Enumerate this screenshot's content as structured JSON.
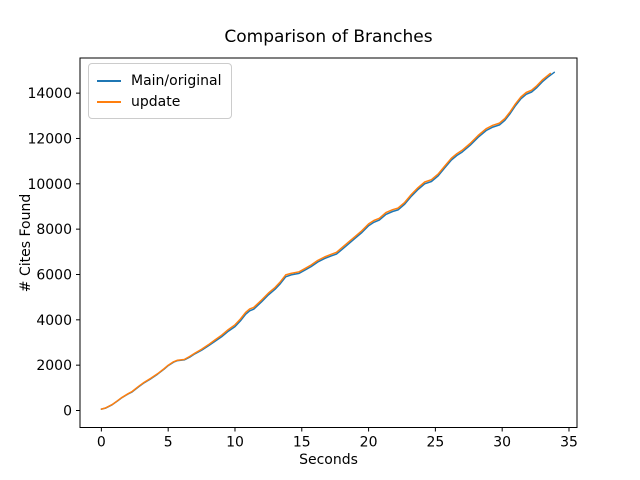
{
  "chart_data": {
    "type": "line",
    "title": "Comparison of Branches",
    "xlabel": "Seconds",
    "ylabel": "# Cites Found",
    "xlim": [
      -1.6,
      35.6
    ],
    "ylim": [
      -750,
      15550
    ],
    "x_ticks": [
      0,
      5,
      10,
      15,
      20,
      25,
      30,
      35
    ],
    "y_ticks": [
      0,
      2000,
      4000,
      6000,
      8000,
      10000,
      12000,
      14000
    ],
    "grid": false,
    "legend_position": "upper left",
    "series": [
      {
        "name": "Main/original",
        "color": "#1f77b4",
        "x": [
          0,
          0.3,
          0.8,
          1.2,
          1.5,
          2,
          2.3,
          2.8,
          3.2,
          3.7,
          4.2,
          4.7,
          5,
          5.4,
          5.7,
          6.2,
          6.6,
          7,
          7.5,
          8,
          8.5,
          9,
          9.5,
          10,
          10.4,
          10.8,
          11.1,
          11.4,
          12,
          12.5,
          13,
          13.4,
          13.8,
          14.2,
          14.8,
          15.2,
          15.7,
          16.2,
          16.7,
          17.2,
          17.6,
          18,
          18.5,
          19,
          19.5,
          20,
          20.4,
          20.8,
          21.3,
          21.8,
          22.2,
          22.7,
          23.2,
          23.7,
          24.2,
          24.7,
          25.2,
          25.7,
          26.2,
          26.6,
          27,
          27.6,
          28.2,
          28.8,
          29.3,
          29.8,
          30.2,
          30.6,
          31,
          31.4,
          31.8,
          32.2,
          32.6,
          33,
          33.4,
          33.9
        ],
        "y": [
          60,
          100,
          250,
          420,
          550,
          730,
          820,
          1050,
          1220,
          1400,
          1600,
          1830,
          1980,
          2130,
          2200,
          2230,
          2350,
          2500,
          2660,
          2850,
          3050,
          3250,
          3500,
          3700,
          3950,
          4250,
          4400,
          4470,
          4800,
          5100,
          5350,
          5600,
          5900,
          5980,
          6050,
          6180,
          6350,
          6550,
          6700,
          6820,
          6900,
          7100,
          7350,
          7600,
          7850,
          8150,
          8300,
          8400,
          8650,
          8780,
          8850,
          9100,
          9450,
          9750,
          10000,
          10100,
          10350,
          10700,
          11050,
          11250,
          11400,
          11700,
          12050,
          12350,
          12500,
          12600,
          12800,
          13100,
          13450,
          13750,
          13950,
          14050,
          14250,
          14500,
          14700,
          14920
        ]
      },
      {
        "name": "update",
        "color": "#ff7f0e",
        "x": [
          0,
          0.3,
          0.8,
          1.2,
          1.5,
          2,
          2.3,
          2.8,
          3.2,
          3.7,
          4.2,
          4.7,
          5,
          5.4,
          5.7,
          6.2,
          6.6,
          7,
          7.5,
          8,
          8.5,
          9,
          9.5,
          10,
          10.4,
          10.8,
          11.1,
          11.4,
          12,
          12.5,
          13,
          13.4,
          13.8,
          14.2,
          14.8,
          15.2,
          15.7,
          16.2,
          16.7,
          17.2,
          17.6,
          18,
          18.5,
          19,
          19.5,
          20,
          20.4,
          20.8,
          21.3,
          21.8,
          22.2,
          22.7,
          23.2,
          23.7,
          24.2,
          24.7,
          25.2,
          25.7,
          26.2,
          26.6,
          27,
          27.6,
          28.2,
          28.8,
          29.3,
          29.8,
          30.2,
          30.6,
          31,
          31.4,
          31.8,
          32.2,
          32.6,
          33,
          33.6
        ],
        "y": [
          60,
          110,
          260,
          430,
          560,
          740,
          840,
          1070,
          1240,
          1420,
          1620,
          1850,
          2000,
          2150,
          2220,
          2250,
          2380,
          2530,
          2700,
          2900,
          3110,
          3320,
          3570,
          3780,
          4030,
          4330,
          4480,
          4550,
          4880,
          5180,
          5430,
          5680,
          5980,
          6050,
          6120,
          6250,
          6420,
          6620,
          6770,
          6890,
          6980,
          7180,
          7430,
          7680,
          7930,
          8230,
          8380,
          8480,
          8730,
          8860,
          8930,
          9180,
          9530,
          9830,
          10080,
          10180,
          10430,
          10780,
          11130,
          11330,
          11480,
          11780,
          12130,
          12430,
          12580,
          12680,
          12880,
          13180,
          13530,
          13830,
          14030,
          14130,
          14330,
          14580,
          14870
        ]
      }
    ]
  }
}
